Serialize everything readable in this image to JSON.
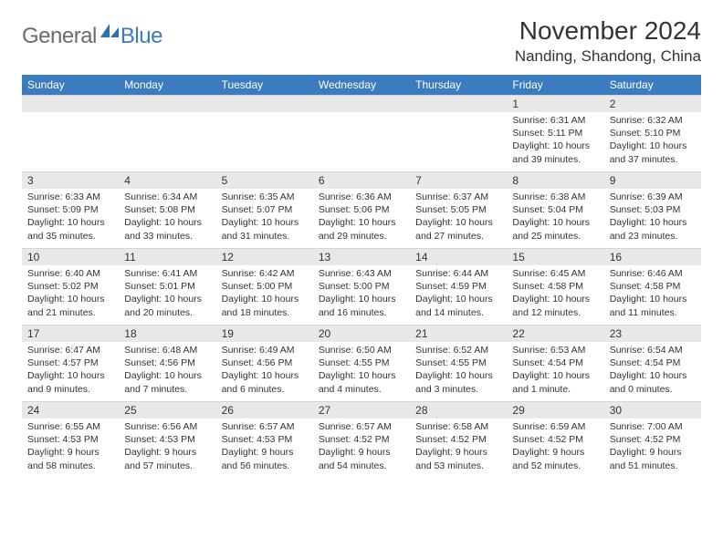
{
  "logo": {
    "general": "General",
    "blue": "Blue"
  },
  "title": "November 2024",
  "location": "Nanding, Shandong, China",
  "colors": {
    "header_bg": "#3b7bbf",
    "header_text": "#ffffff",
    "daynum_bg": "#e8e8e8",
    "border": "#d6d6d6",
    "text": "#333333",
    "logo_gray": "#6b6b6b",
    "logo_blue": "#3b7bbf"
  },
  "weekdays": [
    "Sunday",
    "Monday",
    "Tuesday",
    "Wednesday",
    "Thursday",
    "Friday",
    "Saturday"
  ],
  "layout": {
    "first_weekday_index": 5,
    "days_in_month": 30
  },
  "days": {
    "1": {
      "sunrise": "Sunrise: 6:31 AM",
      "sunset": "Sunset: 5:11 PM",
      "daylight": "Daylight: 10 hours and 39 minutes."
    },
    "2": {
      "sunrise": "Sunrise: 6:32 AM",
      "sunset": "Sunset: 5:10 PM",
      "daylight": "Daylight: 10 hours and 37 minutes."
    },
    "3": {
      "sunrise": "Sunrise: 6:33 AM",
      "sunset": "Sunset: 5:09 PM",
      "daylight": "Daylight: 10 hours and 35 minutes."
    },
    "4": {
      "sunrise": "Sunrise: 6:34 AM",
      "sunset": "Sunset: 5:08 PM",
      "daylight": "Daylight: 10 hours and 33 minutes."
    },
    "5": {
      "sunrise": "Sunrise: 6:35 AM",
      "sunset": "Sunset: 5:07 PM",
      "daylight": "Daylight: 10 hours and 31 minutes."
    },
    "6": {
      "sunrise": "Sunrise: 6:36 AM",
      "sunset": "Sunset: 5:06 PM",
      "daylight": "Daylight: 10 hours and 29 minutes."
    },
    "7": {
      "sunrise": "Sunrise: 6:37 AM",
      "sunset": "Sunset: 5:05 PM",
      "daylight": "Daylight: 10 hours and 27 minutes."
    },
    "8": {
      "sunrise": "Sunrise: 6:38 AM",
      "sunset": "Sunset: 5:04 PM",
      "daylight": "Daylight: 10 hours and 25 minutes."
    },
    "9": {
      "sunrise": "Sunrise: 6:39 AM",
      "sunset": "Sunset: 5:03 PM",
      "daylight": "Daylight: 10 hours and 23 minutes."
    },
    "10": {
      "sunrise": "Sunrise: 6:40 AM",
      "sunset": "Sunset: 5:02 PM",
      "daylight": "Daylight: 10 hours and 21 minutes."
    },
    "11": {
      "sunrise": "Sunrise: 6:41 AM",
      "sunset": "Sunset: 5:01 PM",
      "daylight": "Daylight: 10 hours and 20 minutes."
    },
    "12": {
      "sunrise": "Sunrise: 6:42 AM",
      "sunset": "Sunset: 5:00 PM",
      "daylight": "Daylight: 10 hours and 18 minutes."
    },
    "13": {
      "sunrise": "Sunrise: 6:43 AM",
      "sunset": "Sunset: 5:00 PM",
      "daylight": "Daylight: 10 hours and 16 minutes."
    },
    "14": {
      "sunrise": "Sunrise: 6:44 AM",
      "sunset": "Sunset: 4:59 PM",
      "daylight": "Daylight: 10 hours and 14 minutes."
    },
    "15": {
      "sunrise": "Sunrise: 6:45 AM",
      "sunset": "Sunset: 4:58 PM",
      "daylight": "Daylight: 10 hours and 12 minutes."
    },
    "16": {
      "sunrise": "Sunrise: 6:46 AM",
      "sunset": "Sunset: 4:58 PM",
      "daylight": "Daylight: 10 hours and 11 minutes."
    },
    "17": {
      "sunrise": "Sunrise: 6:47 AM",
      "sunset": "Sunset: 4:57 PM",
      "daylight": "Daylight: 10 hours and 9 minutes."
    },
    "18": {
      "sunrise": "Sunrise: 6:48 AM",
      "sunset": "Sunset: 4:56 PM",
      "daylight": "Daylight: 10 hours and 7 minutes."
    },
    "19": {
      "sunrise": "Sunrise: 6:49 AM",
      "sunset": "Sunset: 4:56 PM",
      "daylight": "Daylight: 10 hours and 6 minutes."
    },
    "20": {
      "sunrise": "Sunrise: 6:50 AM",
      "sunset": "Sunset: 4:55 PM",
      "daylight": "Daylight: 10 hours and 4 minutes."
    },
    "21": {
      "sunrise": "Sunrise: 6:52 AM",
      "sunset": "Sunset: 4:55 PM",
      "daylight": "Daylight: 10 hours and 3 minutes."
    },
    "22": {
      "sunrise": "Sunrise: 6:53 AM",
      "sunset": "Sunset: 4:54 PM",
      "daylight": "Daylight: 10 hours and 1 minute."
    },
    "23": {
      "sunrise": "Sunrise: 6:54 AM",
      "sunset": "Sunset: 4:54 PM",
      "daylight": "Daylight: 10 hours and 0 minutes."
    },
    "24": {
      "sunrise": "Sunrise: 6:55 AM",
      "sunset": "Sunset: 4:53 PM",
      "daylight": "Daylight: 9 hours and 58 minutes."
    },
    "25": {
      "sunrise": "Sunrise: 6:56 AM",
      "sunset": "Sunset: 4:53 PM",
      "daylight": "Daylight: 9 hours and 57 minutes."
    },
    "26": {
      "sunrise": "Sunrise: 6:57 AM",
      "sunset": "Sunset: 4:53 PM",
      "daylight": "Daylight: 9 hours and 56 minutes."
    },
    "27": {
      "sunrise": "Sunrise: 6:57 AM",
      "sunset": "Sunset: 4:52 PM",
      "daylight": "Daylight: 9 hours and 54 minutes."
    },
    "28": {
      "sunrise": "Sunrise: 6:58 AM",
      "sunset": "Sunset: 4:52 PM",
      "daylight": "Daylight: 9 hours and 53 minutes."
    },
    "29": {
      "sunrise": "Sunrise: 6:59 AM",
      "sunset": "Sunset: 4:52 PM",
      "daylight": "Daylight: 9 hours and 52 minutes."
    },
    "30": {
      "sunrise": "Sunrise: 7:00 AM",
      "sunset": "Sunset: 4:52 PM",
      "daylight": "Daylight: 9 hours and 51 minutes."
    }
  }
}
